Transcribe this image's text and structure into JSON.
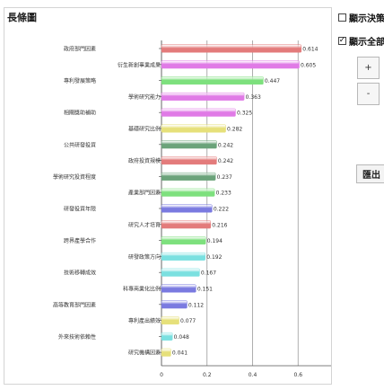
{
  "panel": {
    "title": "長條圖"
  },
  "controls": {
    "show_decision_label": "顯示決策",
    "show_all_label": "顯示全部",
    "show_decision_checked": false,
    "show_all_checked": true,
    "zoom_in_label": "+",
    "zoom_out_label": "-",
    "export_label": "匯出"
  },
  "chart_data": {
    "type": "bar",
    "orientation": "horizontal",
    "categories": [
      "政府部門因素",
      "衍生新創事業成果",
      "專利發展策略",
      "學術研究能力",
      "相關獎助補助",
      "基礎研究比例",
      "公共研發投資",
      "政府投資規模",
      "學術研究投資程度",
      "產業部門因素",
      "研發投資年限",
      "研究人才培育",
      "跨界產學合作",
      "研發政策方向",
      "技術移轉成效",
      "科專商業化比例",
      "高等教育部門因素",
      "專利產出績效",
      "外來技術依賴性",
      "研究機構因素"
    ],
    "values": [
      0.614,
      0.605,
      0.447,
      0.363,
      0.325,
      0.282,
      0.242,
      0.242,
      0.237,
      0.233,
      0.222,
      0.216,
      0.194,
      0.192,
      0.167,
      0.151,
      0.112,
      0.077,
      0.048,
      0.041
    ],
    "value_labels": [
      "0.614",
      "0.605",
      "0.447",
      "0.363",
      "0.325",
      "0.282",
      "0.242",
      "0.242",
      "0.237",
      "0.233",
      "0.222",
      "0.216",
      "0.194",
      "0.192",
      "0.167",
      "0.151",
      "0.112",
      "0.077",
      "0.048",
      "0.041"
    ],
    "colors": [
      "#e37b7b",
      "#e07ae6",
      "#7de07d",
      "#e07ae6",
      "#e07ae6",
      "#e6e07a",
      "#6ba37a",
      "#e37b7b",
      "#6ba37a",
      "#7de07d",
      "#7a7ae0",
      "#e37b7b",
      "#7de07d",
      "#7ae0e0",
      "#7ae0e0",
      "#7a7ae0",
      "#7a7ae0",
      "#e6e07a",
      "#7ae0e0",
      "#e6e07a"
    ],
    "xlim": [
      0,
      0.8
    ],
    "xticks": [
      "0",
      "0.2",
      "0.4",
      "0.6",
      "0.8"
    ],
    "grid": true,
    "legend": "none",
    "title": "",
    "xlabel": "",
    "ylabel": ""
  }
}
